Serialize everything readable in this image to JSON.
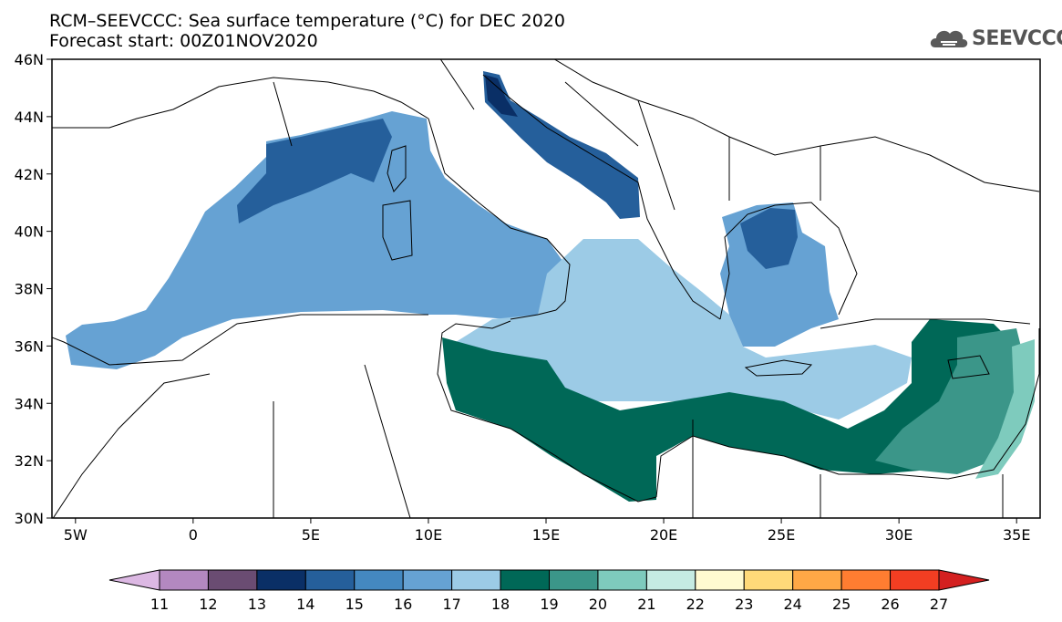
{
  "header": {
    "title": "RCM–SEEVCCC: Sea surface temperature (°C) for DEC 2020",
    "subtitle": "Forecast start: 00Z01NOV2020"
  },
  "logo": {
    "text": "SEEVCCC",
    "icon": "cloud-logo-icon"
  },
  "map": {
    "lon_range": [
      -6,
      36
    ],
    "lat_range": [
      30,
      46
    ],
    "lat_ticks": [
      {
        "v": 46,
        "label": "46N"
      },
      {
        "v": 44,
        "label": "44N"
      },
      {
        "v": 42,
        "label": "42N"
      },
      {
        "v": 40,
        "label": "40N"
      },
      {
        "v": 38,
        "label": "38N"
      },
      {
        "v": 36,
        "label": "36N"
      },
      {
        "v": 34,
        "label": "34N"
      },
      {
        "v": 32,
        "label": "32N"
      },
      {
        "v": 30,
        "label": "30N"
      }
    ],
    "lon_ticks": [
      {
        "v": -5,
        "label": "5W"
      },
      {
        "v": 0,
        "label": "0"
      },
      {
        "v": 5,
        "label": "5E"
      },
      {
        "v": 10,
        "label": "10E"
      },
      {
        "v": 15,
        "label": "15E"
      },
      {
        "v": 20,
        "label": "20E"
      },
      {
        "v": 25,
        "label": "25E"
      },
      {
        "v": 30,
        "label": "30E"
      },
      {
        "v": 35,
        "label": "35E"
      }
    ]
  },
  "colorbar": {
    "labels": [
      "11",
      "12",
      "13",
      "14",
      "15",
      "16",
      "17",
      "18",
      "19",
      "20",
      "21",
      "22",
      "23",
      "24",
      "25",
      "26",
      "27"
    ],
    "colors": [
      "#dcb8e3",
      "#b388c0",
      "#6a4c72",
      "#0a2f66",
      "#255f9b",
      "#4488c0",
      "#66a2d3",
      "#9ccbe6",
      "#006857",
      "#3b9689",
      "#7ecbbd",
      "#c5ebe2",
      "#fffad0",
      "#ffd979",
      "#ffa846",
      "#ff7d31",
      "#f23e22",
      "#d42020"
    ]
  }
}
